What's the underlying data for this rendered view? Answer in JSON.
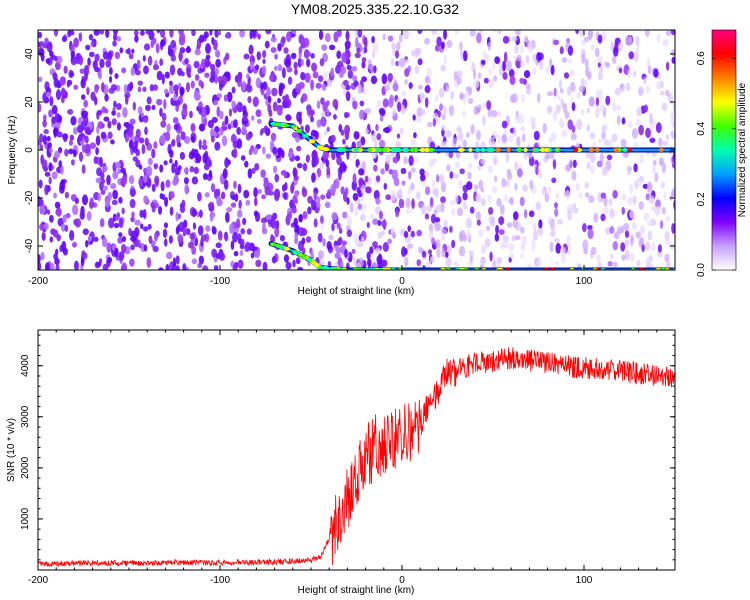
{
  "title": "YM08.2025.335.22.10.G32",
  "chart_data": [
    {
      "type": "heatmap",
      "xlabel": "Height of straight line (km)",
      "ylabel": "Frequency (Hz)",
      "xlim": [
        -200,
        150
      ],
      "ylim": [
        -50,
        50
      ],
      "xticks": [
        -200,
        -100,
        0,
        100
      ],
      "yticks": [
        -40,
        -20,
        0,
        20,
        40
      ],
      "colorbar": {
        "label": "Normalized spectral amplitude",
        "range": [
          0.0,
          0.68
        ],
        "ticks": [
          0.0,
          0.2,
          0.4,
          0.6
        ],
        "tick_labels": [
          "0.0",
          "0.2",
          "0.4",
          "0.6"
        ],
        "colormap": [
          "#ffffff",
          "#c8a0ff",
          "#8000ff",
          "#0000ff",
          "#00a0ff",
          "#00ffb0",
          "#40ff00",
          "#ffff00",
          "#ff8000",
          "#ff0000",
          "#ff0080"
        ]
      },
      "signal_tracks": [
        {
          "name": "",
          "points": [
            [
              -72,
              11
            ],
            [
              -60,
              10
            ],
            [
              -50,
              4
            ],
            [
              -45,
              1
            ],
            [
              -40,
              0
            ],
            [
              -20,
              0
            ],
            [
              0,
              0
            ],
            [
              50,
              0
            ],
            [
              100,
              0
            ],
            [
              150,
              0
            ]
          ]
        },
        {
          "name": "",
          "points": [
            [
              -72,
              -39
            ],
            [
              -60,
              -42
            ],
            [
              -50,
              -46
            ],
            [
              -45,
              -49
            ],
            [
              -30,
              -50
            ],
            [
              0,
              -50
            ],
            [
              100,
              -50
            ],
            [
              150,
              -50
            ]
          ]
        }
      ],
      "grid": false
    },
    {
      "type": "line",
      "xlabel": "Height of straight line (km)",
      "ylabel": "SNR (10 * v/v)",
      "xlim": [
        -200,
        150
      ],
      "ylim": [
        0,
        4700
      ],
      "xticks": [
        -200,
        -100,
        0,
        100
      ],
      "yticks": [
        1000,
        2000,
        3000,
        4000
      ],
      "color": "#ff0000",
      "series": [
        {
          "name": "",
          "x": [
            -200,
            -180,
            -160,
            -140,
            -120,
            -100,
            -80,
            -60,
            -50,
            -45,
            -40,
            -35,
            -30,
            -25,
            -20,
            -15,
            -10,
            -5,
            0,
            5,
            10,
            15,
            20,
            25,
            30,
            40,
            50,
            60,
            70,
            80,
            90,
            100,
            110,
            120,
            130,
            140,
            150
          ],
          "y": [
            120,
            130,
            140,
            130,
            150,
            140,
            150,
            170,
            200,
            250,
            600,
            1000,
            1400,
            1700,
            2200,
            2400,
            2500,
            2550,
            2650,
            2750,
            2950,
            3200,
            3600,
            3800,
            3900,
            4050,
            4100,
            4150,
            4100,
            4050,
            4000,
            3950,
            3950,
            3900,
            3850,
            3800,
            3750
          ]
        }
      ],
      "grid": false
    }
  ]
}
